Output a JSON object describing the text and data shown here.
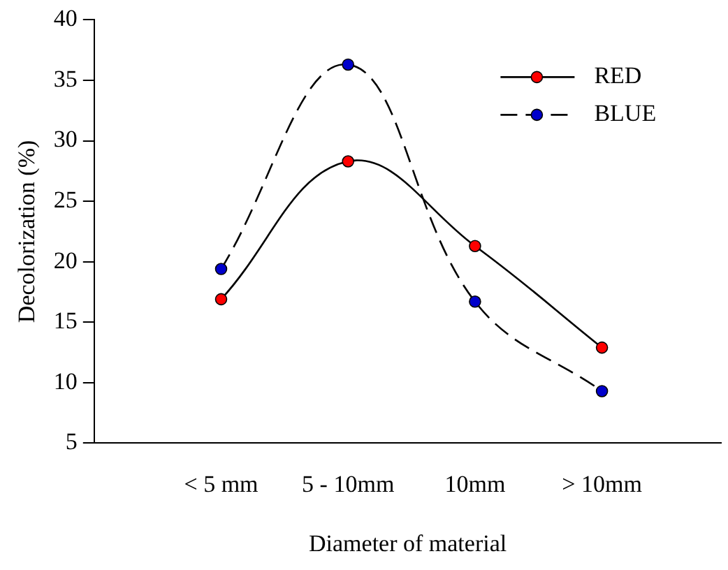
{
  "chart_data": {
    "type": "line",
    "xlabel": "Diameter of material",
    "ylabel": "Decolorization (%)",
    "categories": [
      "< 5 mm",
      "5 - 10mm",
      "10mm",
      "> 10mm"
    ],
    "series": [
      {
        "name": "RED",
        "color": "#ff0000",
        "values": [
          16.9,
          28.3,
          21.3,
          12.9
        ],
        "line_style": "solid"
      },
      {
        "name": "BLUE",
        "color": "#0000cc",
        "values": [
          19.4,
          36.3,
          16.7,
          9.3
        ],
        "line_style": "dashed"
      }
    ],
    "ylim": [
      5,
      40
    ],
    "yticks": [
      5,
      10,
      15,
      20,
      25,
      30,
      35,
      40
    ],
    "grid": false,
    "legend": "top right",
    "marker": "circle"
  }
}
